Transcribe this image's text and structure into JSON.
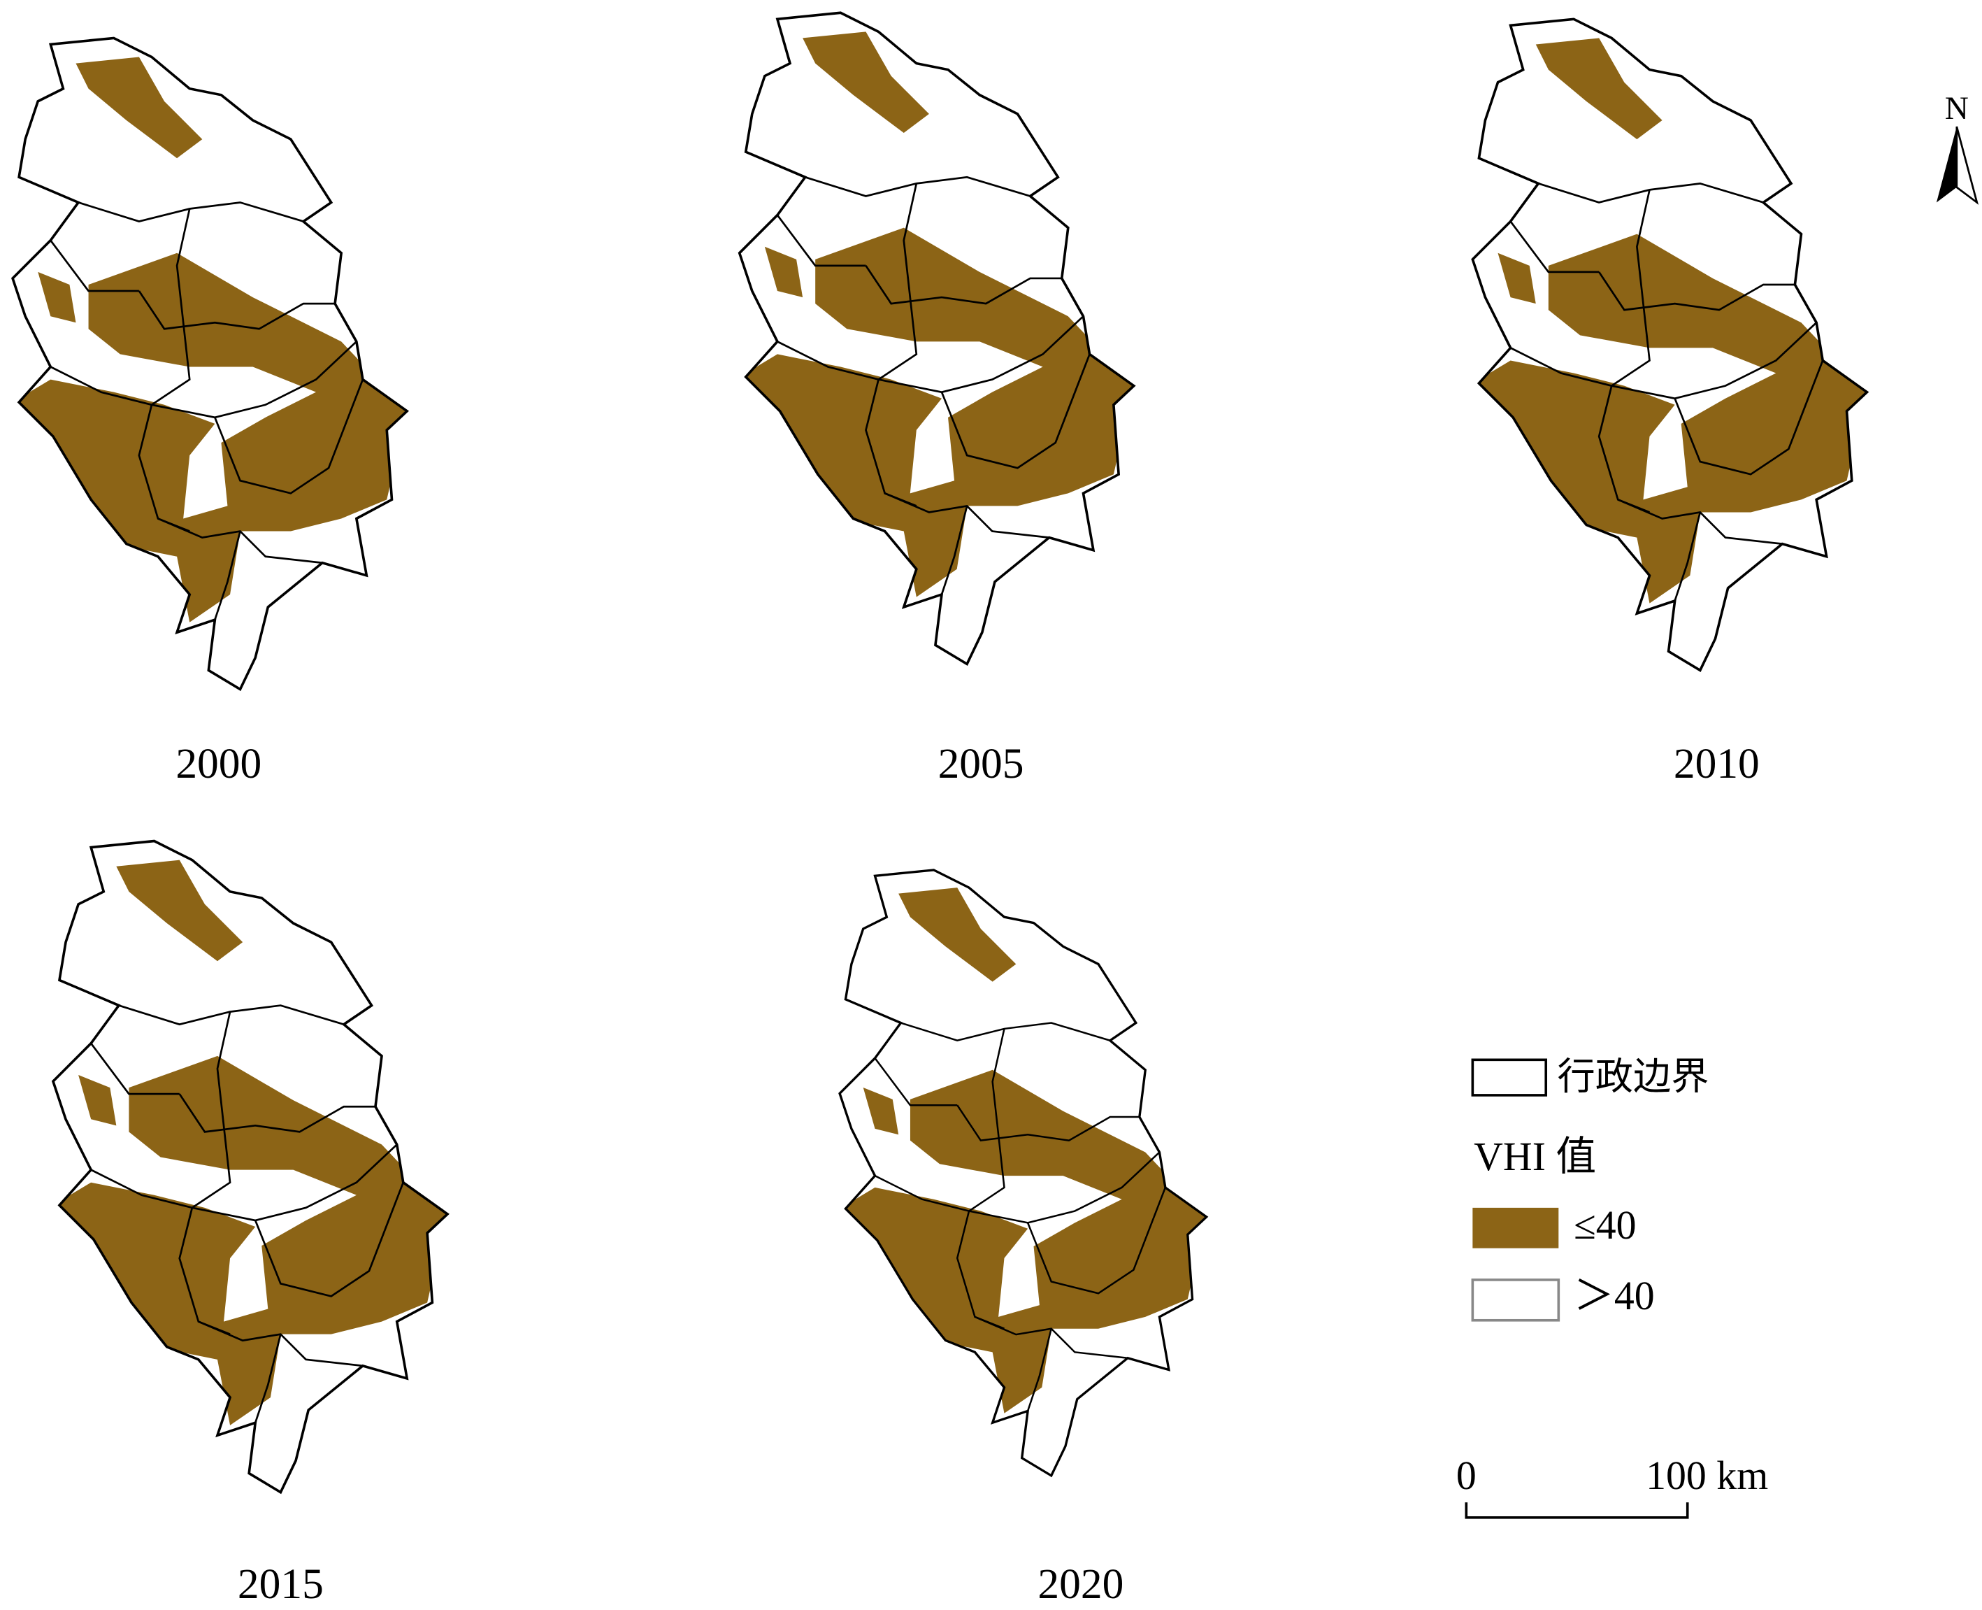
{
  "panels": [
    {
      "label": "2000"
    },
    {
      "label": "2005"
    },
    {
      "label": "2010"
    },
    {
      "label": "2015"
    },
    {
      "label": "2020"
    }
  ],
  "legend": {
    "boundary": "行政边界",
    "title": "VHI 值",
    "low": "≤40",
    "high": "＞40"
  },
  "scale_bar": {
    "start": "0",
    "end": "100 km"
  },
  "north_arrow": "N"
}
